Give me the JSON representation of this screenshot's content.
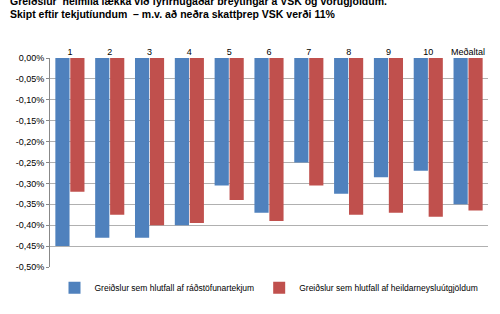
{
  "chart_data": {
    "type": "bar",
    "title": "Greiðslur  heimila lækka við fyrirhugaðar breytingar á VSK og vörugjöldum.",
    "subtitle": "Skipt eftir tekjutíundum  – m.v. að neðra skattþrep VSK verði 11%",
    "categories": [
      "1",
      "2",
      "3",
      "4",
      "5",
      "6",
      "7",
      "8",
      "9",
      "10",
      "Meðaltal"
    ],
    "series": [
      {
        "name": "Greiðslur sem hlutfall af ráðstöfunartekjum",
        "color": "#4f81bd",
        "values": [
          -0.45,
          -0.43,
          -0.43,
          -0.4,
          -0.305,
          -0.37,
          -0.25,
          -0.325,
          -0.285,
          -0.27,
          -0.35
        ]
      },
      {
        "name": "Greiðslur sem hlutfall af heildarneysluútgjöldum",
        "color": "#c0504d",
        "values": [
          -0.32,
          -0.375,
          -0.4,
          -0.395,
          -0.34,
          -0.39,
          -0.305,
          -0.375,
          -0.37,
          -0.38,
          -0.365
        ]
      }
    ],
    "ylim": [
      -0.5,
      0
    ],
    "yticks": [
      {
        "value": 0,
        "label": "0,00%"
      },
      {
        "value": -0.05,
        "label": "-0,05%"
      },
      {
        "value": -0.1,
        "label": "-0,10%"
      },
      {
        "value": -0.15,
        "label": "-0,15%"
      },
      {
        "value": -0.2,
        "label": "-0,20%"
      },
      {
        "value": -0.25,
        "label": "-0,25%"
      },
      {
        "value": -0.3,
        "label": "-0,30%"
      },
      {
        "value": -0.35,
        "label": "-0,35%"
      },
      {
        "value": -0.4,
        "label": "-0,40%"
      },
      {
        "value": -0.45,
        "label": "-0,45%"
      },
      {
        "value": -0.5,
        "label": "-0,50%"
      }
    ],
    "grid": true,
    "legend": "bottom"
  }
}
